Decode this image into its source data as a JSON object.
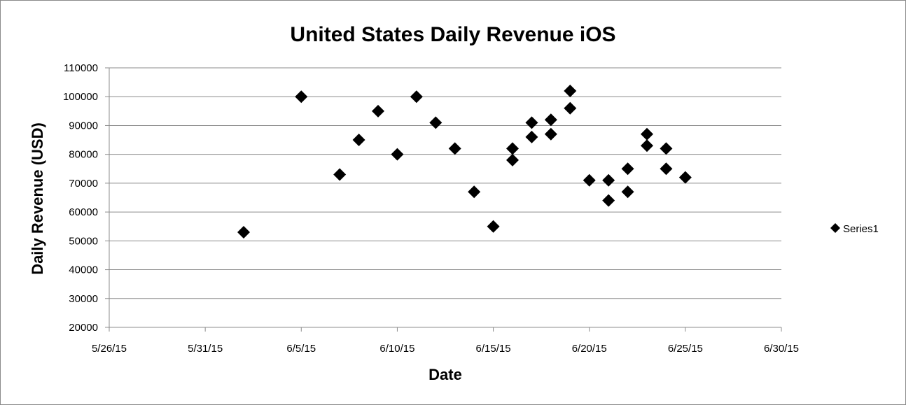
{
  "chart_data": {
    "type": "scatter",
    "title": "United States Daily Revenue iOS",
    "xlabel": "Date",
    "ylabel": "Daily Revenue  (USD)",
    "x_tick_labels": [
      "5/26/15",
      "5/31/15",
      "6/5/15",
      "6/10/15",
      "6/15/15",
      "6/20/15",
      "6/25/15",
      "6/30/15"
    ],
    "y_tick_labels": [
      "20000",
      "30000",
      "40000",
      "50000",
      "60000",
      "70000",
      "80000",
      "90000",
      "100000",
      "110000"
    ],
    "xlim": [
      "5/26/15",
      "6/30/15"
    ],
    "ylim": [
      20000,
      110000
    ],
    "grid": "horizontal",
    "legend_position": "right",
    "marker": "diamond",
    "marker_color": "#000000",
    "series": [
      {
        "name": "Series1",
        "points": [
          {
            "x": "6/2/15",
            "y": 53000
          },
          {
            "x": "6/5/15",
            "y": 100000
          },
          {
            "x": "6/7/15",
            "y": 73000
          },
          {
            "x": "6/8/15",
            "y": 85000
          },
          {
            "x": "6/9/15",
            "y": 95000
          },
          {
            "x": "6/10/15",
            "y": 80000
          },
          {
            "x": "6/11/15",
            "y": 100000
          },
          {
            "x": "6/12/15",
            "y": 91000
          },
          {
            "x": "6/13/15",
            "y": 82000
          },
          {
            "x": "6/14/15",
            "y": 67000
          },
          {
            "x": "6/15/15",
            "y": 55000
          },
          {
            "x": "6/16/15",
            "y": 82000
          },
          {
            "x": "6/16/15",
            "y": 78000
          },
          {
            "x": "6/17/15",
            "y": 91000
          },
          {
            "x": "6/17/15",
            "y": 86000
          },
          {
            "x": "6/18/15",
            "y": 92000
          },
          {
            "x": "6/18/15",
            "y": 87000
          },
          {
            "x": "6/19/15",
            "y": 102000
          },
          {
            "x": "6/19/15",
            "y": 96000
          },
          {
            "x": "6/20/15",
            "y": 71000
          },
          {
            "x": "6/21/15",
            "y": 71000
          },
          {
            "x": "6/21/15",
            "y": 64000
          },
          {
            "x": "6/22/15",
            "y": 75000
          },
          {
            "x": "6/22/15",
            "y": 67000
          },
          {
            "x": "6/23/15",
            "y": 87000
          },
          {
            "x": "6/23/15",
            "y": 83000
          },
          {
            "x": "6/24/15",
            "y": 82000
          },
          {
            "x": "6/24/15",
            "y": 75000
          },
          {
            "x": "6/25/15",
            "y": 72000
          }
        ]
      }
    ]
  }
}
